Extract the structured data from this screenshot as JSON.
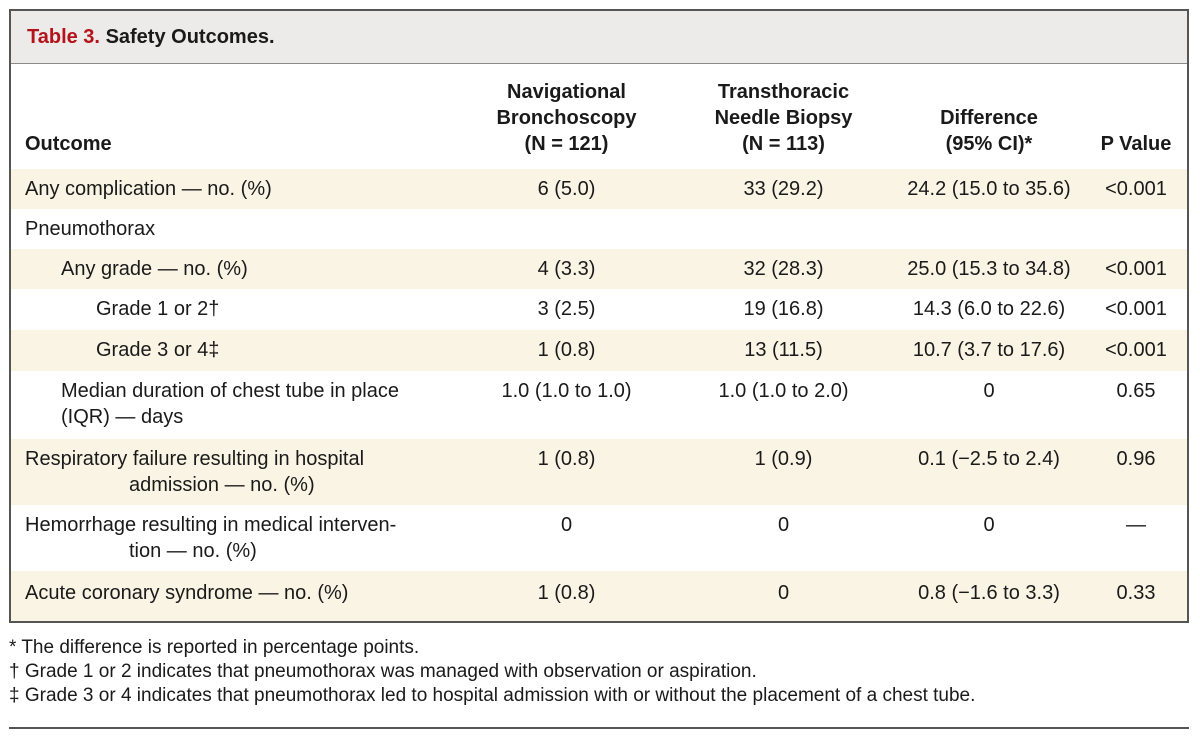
{
  "table": {
    "label": "Table 3.",
    "title": "Safety Outcomes.",
    "headers": {
      "outcome": "Outcome",
      "nav": [
        "Navigational",
        "Bronchoscopy",
        "(N = 121)"
      ],
      "ttnb": [
        "Transthoracic",
        "Needle Biopsy",
        "(N = 113)"
      ],
      "diff": [
        "Difference",
        "(95% CI)*"
      ],
      "p": "P Value"
    },
    "rows": [
      {
        "outcome": [
          "Any complication — no. (%)"
        ],
        "nav": "6 (5.0)",
        "ttnb": "33 (29.2)",
        "diff": "24.2 (15.0 to 35.6)",
        "p": "<0.001"
      },
      {
        "outcome": [
          "Pneumothorax"
        ],
        "nav": "",
        "ttnb": "",
        "diff": "",
        "p": ""
      },
      {
        "outcome": [
          "Any grade — no. (%)"
        ],
        "nav": "4 (3.3)",
        "ttnb": "32 (28.3)",
        "diff": "25.0 (15.3 to 34.8)",
        "p": "<0.001"
      },
      {
        "outcome": [
          "Grade 1 or 2†"
        ],
        "nav": "3 (2.5)",
        "ttnb": "19 (16.8)",
        "diff": "14.3 (6.0 to 22.6)",
        "p": "<0.001"
      },
      {
        "outcome": [
          "Grade 3 or 4‡"
        ],
        "nav": "1 (0.8)",
        "ttnb": "13 (11.5)",
        "diff": "10.7 (3.7 to 17.6)",
        "p": "<0.001"
      },
      {
        "outcome": [
          "Median duration of chest tube in place",
          "(IQR) — days"
        ],
        "nav": "1.0 (1.0 to 1.0)",
        "ttnb": "1.0 (1.0 to 2.0)",
        "diff": "0",
        "p": "0.65"
      },
      {
        "outcome": [
          "Respiratory failure resulting in hospital",
          "admission — no. (%)"
        ],
        "nav": "1 (0.8)",
        "ttnb": "1 (0.9)",
        "diff": "0.1 (−2.5 to 2.4)",
        "p": "0.96"
      },
      {
        "outcome": [
          "Hemorrhage resulting in medical interven-",
          "tion — no. (%)"
        ],
        "nav": "0",
        "ttnb": "0",
        "diff": "0",
        "p": "—"
      },
      {
        "outcome": [
          "Acute coronary syndrome — no. (%)"
        ],
        "nav": "1 (0.8)",
        "ttnb": "0",
        "diff": "0.8 (−1.6 to 3.3)",
        "p": "0.33"
      }
    ],
    "footnotes": [
      "* The difference is reported in percentage points.",
      "† Grade 1 or 2 indicates that pneumothorax was managed with observation or aspiration.",
      "‡ Grade 3 or 4 indicates that pneumothorax led to hospital admission with or without the placement of a chest tube."
    ]
  }
}
